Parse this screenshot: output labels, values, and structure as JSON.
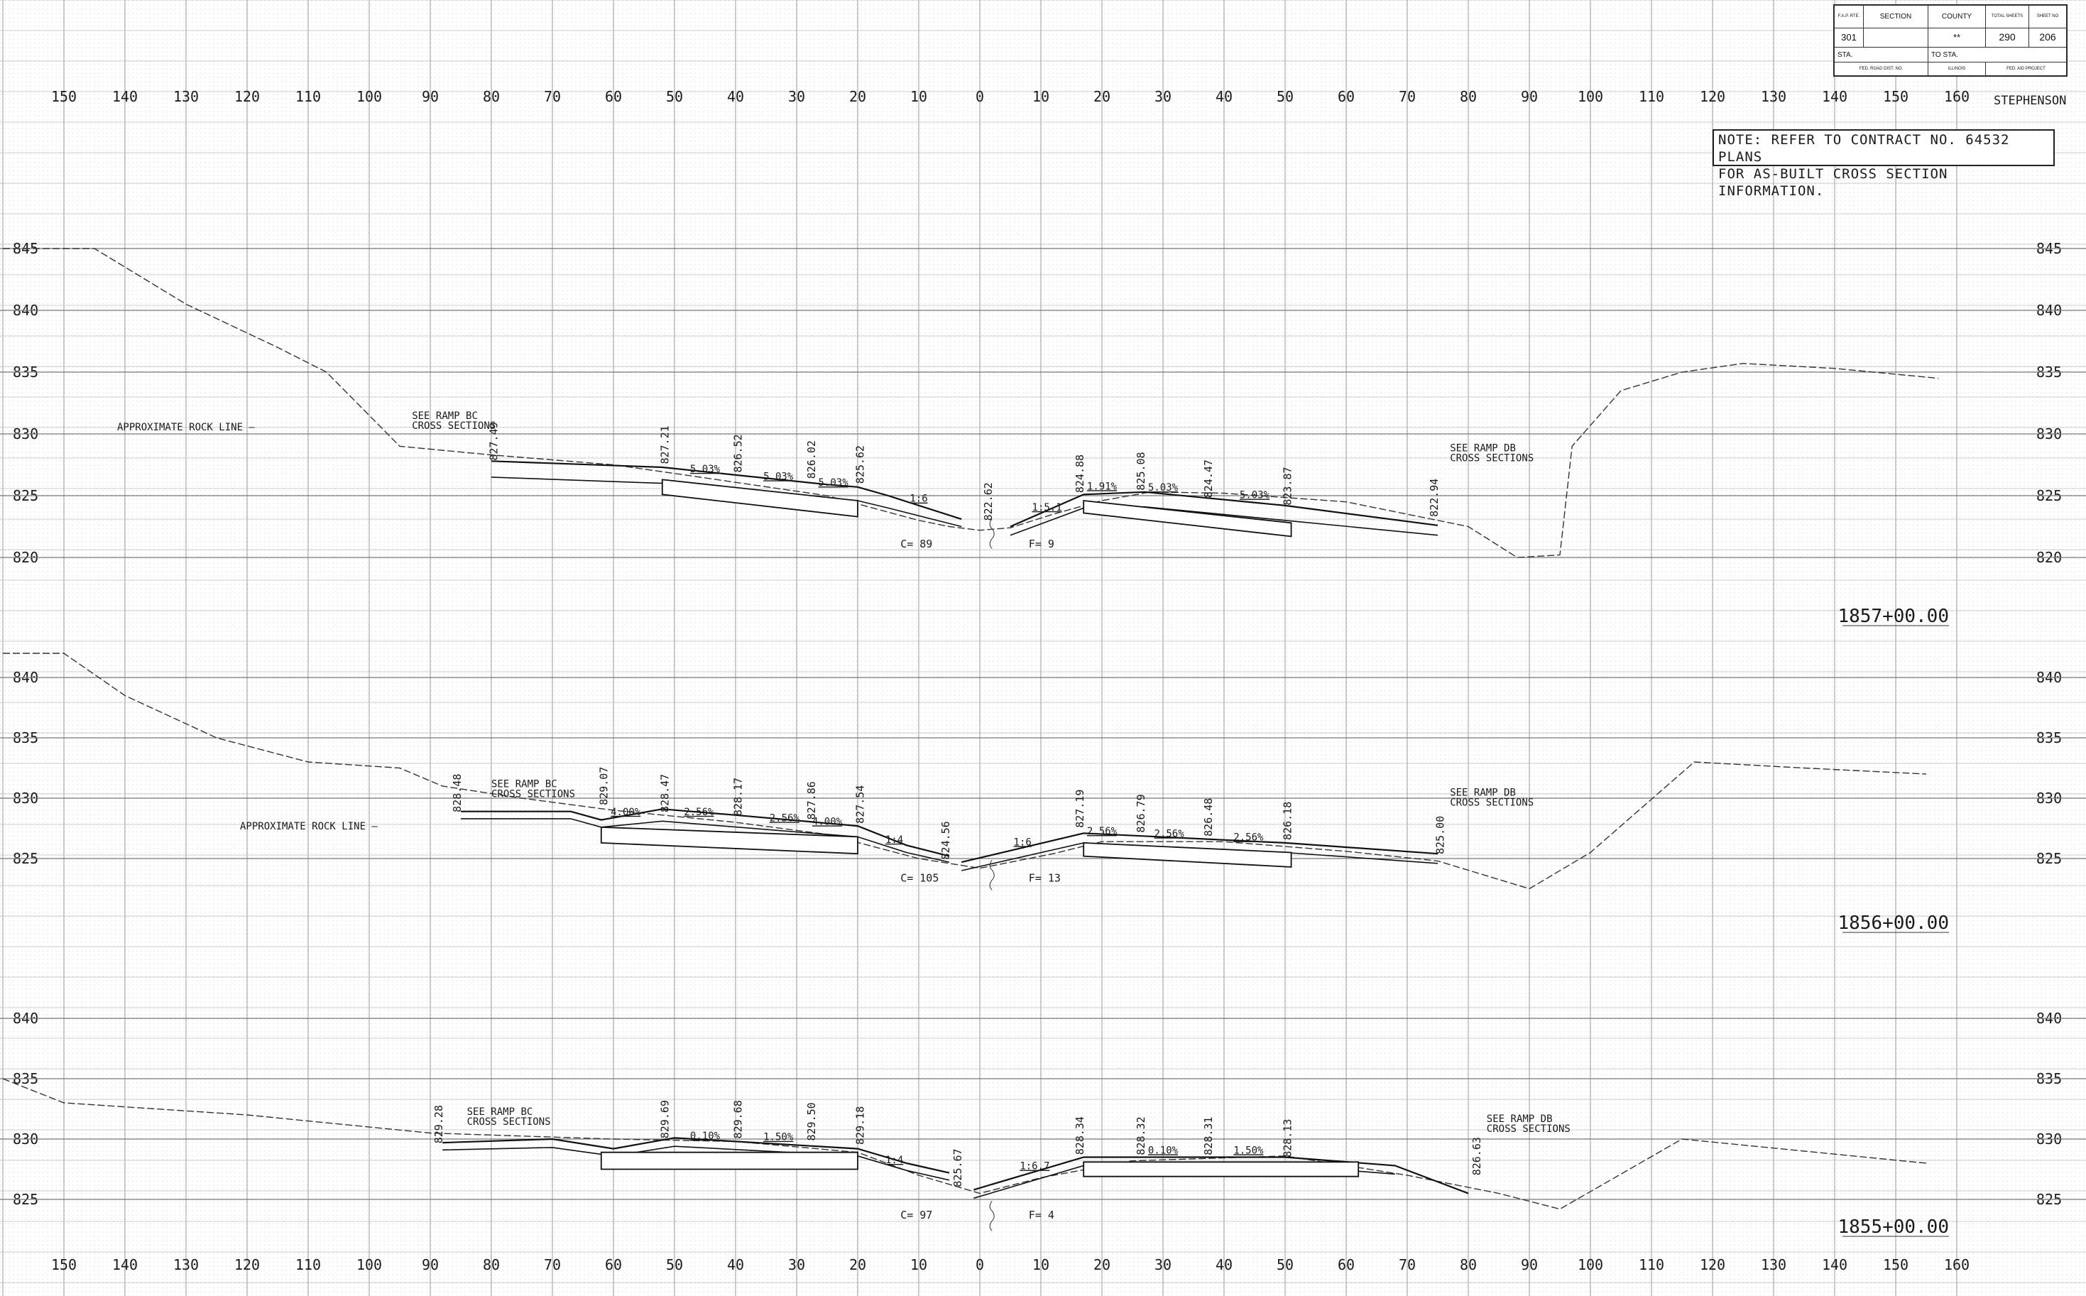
{
  "title_block": {
    "fap_rte_label": "F.A.P. RTE.",
    "section_label": "SECTION",
    "county_label": "COUNTY",
    "total_sheets_label": "TOTAL SHEETS",
    "sheet_no_label": "SHEET NO",
    "route": "301",
    "section": "",
    "county": "**",
    "total_sheets": "290",
    "sheet_no": "206",
    "sta_label": "STA.",
    "to_sta_label": "TO STA.",
    "road_dist_label": "FED. ROAD DIST. NO.",
    "state_label": "ILLINOIS",
    "aid_project_label": "FED. AID PROJECT",
    "county_name": "STEPHENSON"
  },
  "note": {
    "line1": "NOTE:  REFER TO CONTRACT NO. 64532 PLANS",
    "line2": "FOR AS-BUILT CROSS SECTION INFORMATION."
  },
  "offset_labels": [
    "150",
    "140",
    "130",
    "120",
    "110",
    "100",
    "90",
    "80",
    "70",
    "60",
    "50",
    "40",
    "30",
    "20",
    "10",
    "0",
    "10",
    "20",
    "30",
    "40",
    "50",
    "60",
    "70",
    "80",
    "90",
    "100",
    "110",
    "120",
    "130",
    "140",
    "150",
    "160"
  ],
  "panels": [
    {
      "station": "1857+00.00",
      "elevations": [
        "845",
        "840",
        "835",
        "830",
        "825",
        "820"
      ],
      "elev_min": 820,
      "elev_max": 845,
      "rock_label": "APPROXIMATE ROCK LINE",
      "left_ref": [
        "SEE RAMP BC",
        "CROSS SECTIONS"
      ],
      "right_ref": [
        "SEE RAMP DB",
        "CROSS SECTIONS"
      ],
      "cut": "C= 89",
      "fill": "F= 9",
      "ground": [
        [
          -160,
          845
        ],
        [
          -145,
          845
        ],
        [
          -130,
          840.5
        ],
        [
          -115,
          837
        ],
        [
          -107,
          835
        ],
        [
          -105,
          834
        ],
        [
          -103,
          833
        ],
        [
          -95,
          829
        ],
        [
          -80,
          828.3
        ],
        [
          -60,
          827.5
        ],
        [
          -50,
          826.8
        ],
        [
          -25,
          825
        ],
        [
          -10,
          823
        ],
        [
          -5,
          822.5
        ],
        [
          0,
          822.2
        ],
        [
          5,
          822.4
        ],
        [
          12,
          823.5
        ],
        [
          20,
          824.6
        ],
        [
          28,
          825.3
        ],
        [
          40,
          825.2
        ],
        [
          60,
          824.5
        ],
        [
          80,
          822.5
        ],
        [
          88,
          820
        ],
        [
          95,
          820.2
        ],
        [
          97,
          829
        ],
        [
          105,
          833.5
        ],
        [
          115,
          835
        ],
        [
          125,
          835.7
        ],
        [
          140,
          835.3
        ],
        [
          157,
          834.5
        ]
      ],
      "rock": [
        [
          -160,
          845
        ],
        [
          -145,
          845
        ],
        [
          -130,
          840.5
        ],
        [
          -115,
          837
        ],
        [
          -107,
          835
        ],
        [
          -103,
          833
        ],
        [
          -95,
          829
        ],
        [
          -80,
          828.3
        ],
        [
          -60,
          827.5
        ],
        [
          -50,
          826.8
        ]
      ],
      "road_top": [
        [
          -80,
          827.8
        ],
        [
          -52,
          827.3
        ],
        [
          -25,
          825.9
        ],
        [
          -20,
          825.7
        ],
        [
          -15,
          825
        ],
        [
          -3,
          823.1
        ]
      ],
      "road_bottom": [
        [
          -80,
          826.5
        ],
        [
          -52,
          826
        ],
        [
          -20,
          824.6
        ],
        [
          -15,
          824
        ],
        [
          -3,
          822.5
        ]
      ],
      "slab_left": [
        [
          -52,
          826.3
        ],
        [
          -20,
          824.6
        ],
        [
          -20,
          823.3
        ],
        [
          -52,
          825.1
        ]
      ],
      "road_top_r": [
        [
          5,
          822.5
        ],
        [
          17,
          825.1
        ],
        [
          27,
          825.3
        ],
        [
          50,
          824.2
        ],
        [
          75,
          822.6
        ]
      ],
      "road_bottom_r": [
        [
          5,
          821.8
        ],
        [
          17,
          824
        ],
        [
          27,
          824.1
        ],
        [
          50,
          823
        ],
        [
          75,
          821.8
        ]
      ],
      "slab_right": [
        [
          17,
          824.6
        ],
        [
          51,
          822.8
        ],
        [
          51,
          821.7
        ],
        [
          17,
          823.6
        ]
      ],
      "elev_labels": [
        {
          "x": -79,
          "y": 827.49,
          "text": "827.49"
        },
        {
          "x": -51,
          "y": 827.21,
          "text": "827.21"
        },
        {
          "x": -39,
          "y": 826.52,
          "text": "826.52"
        },
        {
          "x": -27,
          "y": 826.02,
          "text": "826.02"
        },
        {
          "x": -19,
          "y": 825.62,
          "text": "825.62"
        },
        {
          "x": 2,
          "y": 822.62,
          "text": "822.62"
        },
        {
          "x": 17,
          "y": 824.88,
          "text": "824.88"
        },
        {
          "x": 27,
          "y": 825.08,
          "text": "825.08"
        },
        {
          "x": 38,
          "y": 824.47,
          "text": "824.47"
        },
        {
          "x": 51,
          "y": 823.87,
          "text": "823.87"
        },
        {
          "x": 75,
          "y": 822.94,
          "text": "822.94"
        }
      ],
      "slope_labels": [
        {
          "x": -45,
          "y": 826.9,
          "text": "5.03%"
        },
        {
          "x": -33,
          "y": 826.3,
          "text": "5.03%"
        },
        {
          "x": -24,
          "y": 825.8,
          "text": "5.03%"
        },
        {
          "x": -10,
          "y": 824.5,
          "text": "1:6"
        },
        {
          "x": 11,
          "y": 823.8,
          "text": "1:5.1"
        },
        {
          "x": 20,
          "y": 825.5,
          "text": "1.91%"
        },
        {
          "x": 30,
          "y": 825.4,
          "text": "5.03%"
        },
        {
          "x": 45,
          "y": 824.8,
          "text": "5.03%"
        }
      ]
    },
    {
      "station": "1856+00.00",
      "elevations": [
        "840",
        "835",
        "830",
        "825"
      ],
      "elev_min": 822,
      "elev_max": 842,
      "rock_label": "APPROXIMATE ROCK LINE",
      "left_ref": [
        "SEE RAMP BC",
        "CROSS SECTIONS"
      ],
      "right_ref": [
        "SEE RAMP DB",
        "CROSS SECTIONS"
      ],
      "cut": "C= 105",
      "fill": "F= 13",
      "ground": [
        [
          -160,
          842
        ],
        [
          -150,
          842
        ],
        [
          -140,
          838.5
        ],
        [
          -125,
          835
        ],
        [
          -110,
          833
        ],
        [
          -95,
          832.5
        ],
        [
          -88,
          831
        ],
        [
          -75,
          830
        ],
        [
          -60,
          829
        ],
        [
          -40,
          828
        ],
        [
          -25,
          827
        ],
        [
          -10,
          825
        ],
        [
          0,
          824.2
        ],
        [
          12,
          825.4
        ],
        [
          20,
          826.4
        ],
        [
          40,
          826.4
        ],
        [
          60,
          825.6
        ],
        [
          75,
          824.8
        ],
        [
          90,
          822.5
        ],
        [
          100,
          825.5
        ],
        [
          117,
          833
        ],
        [
          135,
          832.5
        ],
        [
          155,
          832
        ]
      ],
      "rock": [
        [
          -160,
          842
        ],
        [
          -150,
          842
        ],
        [
          -140,
          838.5
        ],
        [
          -125,
          835
        ],
        [
          -110,
          833
        ],
        [
          -95,
          832.5
        ],
        [
          -88,
          831
        ],
        [
          -75,
          830
        ],
        [
          -60,
          829
        ]
      ],
      "road_top": [
        [
          -85,
          828.9
        ],
        [
          -67,
          828.9
        ],
        [
          -62,
          828.2
        ],
        [
          -52,
          829.1
        ],
        [
          -40,
          828.6
        ],
        [
          -20,
          827.7
        ],
        [
          -12,
          826.1
        ],
        [
          -5,
          825.2
        ]
      ],
      "road_bottom": [
        [
          -85,
          828.3
        ],
        [
          -67,
          828.3
        ],
        [
          -62,
          827.6
        ],
        [
          -52,
          828.1
        ],
        [
          -20,
          826.8
        ],
        [
          -12,
          825.5
        ],
        [
          -5,
          824.7
        ]
      ],
      "slab_left": [
        [
          -62,
          827.6
        ],
        [
          -20,
          826.8
        ],
        [
          -20,
          825.4
        ],
        [
          -62,
          826.3
        ]
      ],
      "road_top_r": [
        [
          -3,
          824.7
        ],
        [
          17,
          827.1
        ],
        [
          50,
          826.3
        ],
        [
          75,
          825.4
        ]
      ],
      "road_bottom_r": [
        [
          -3,
          824
        ],
        [
          17,
          826.3
        ],
        [
          50,
          825.5
        ],
        [
          75,
          824.6
        ]
      ],
      "slab_right": [
        [
          17,
          826.3
        ],
        [
          51,
          825.5
        ],
        [
          51,
          824.3
        ],
        [
          17,
          825.2
        ]
      ],
      "elev_labels": [
        {
          "x": -85,
          "y": 828.48,
          "text": "828.48"
        },
        {
          "x": -61,
          "y": 829.07,
          "text": "829.07"
        },
        {
          "x": -51,
          "y": 828.47,
          "text": "828.47"
        },
        {
          "x": -39,
          "y": 828.17,
          "text": "828.17"
        },
        {
          "x": -27,
          "y": 827.86,
          "text": "827.86"
        },
        {
          "x": -19,
          "y": 827.54,
          "text": "827.54"
        },
        {
          "x": -5,
          "y": 824.56,
          "text": "824.56"
        },
        {
          "x": 17,
          "y": 827.19,
          "text": "827.19"
        },
        {
          "x": 27,
          "y": 826.79,
          "text": "826.79"
        },
        {
          "x": 38,
          "y": 826.48,
          "text": "826.48"
        },
        {
          "x": 51,
          "y": 826.18,
          "text": "826.18"
        },
        {
          "x": 76,
          "y": 825.0,
          "text": "825.00"
        }
      ],
      "slope_labels": [
        {
          "x": -58,
          "y": 828.6,
          "text": "4.00%"
        },
        {
          "x": -46,
          "y": 828.6,
          "text": "2.56%"
        },
        {
          "x": -32,
          "y": 828.1,
          "text": "2.56%"
        },
        {
          "x": -25,
          "y": 827.8,
          "text": "4.00%"
        },
        {
          "x": -14,
          "y": 826.3,
          "text": "1:4"
        },
        {
          "x": 7,
          "y": 826.1,
          "text": "1:6"
        },
        {
          "x": 20,
          "y": 827.0,
          "text": "2.56%"
        },
        {
          "x": 31,
          "y": 826.8,
          "text": "2.56%"
        },
        {
          "x": 44,
          "y": 826.5,
          "text": "2.56%"
        }
      ]
    },
    {
      "station": "1855+00.00",
      "elevations": [
        "840",
        "835",
        "830",
        "825"
      ],
      "elev_min": 822,
      "elev_max": 842,
      "rock_label": "",
      "left_ref": [
        "SEE RAMP BC",
        "CROSS SECTIONS"
      ],
      "right_ref": [
        "SEE RAMP DB",
        "CROSS SECTIONS"
      ],
      "cut": "C= 97",
      "fill": "F= 4",
      "ground": [
        [
          -160,
          835
        ],
        [
          -150,
          833
        ],
        [
          -120,
          832
        ],
        [
          -90,
          830.5
        ],
        [
          -60,
          830
        ],
        [
          -40,
          829.8
        ],
        [
          -20,
          828.9
        ],
        [
          -10,
          827
        ],
        [
          0,
          825.5
        ],
        [
          10,
          826.8
        ],
        [
          25,
          828.2
        ],
        [
          50,
          828.6
        ],
        [
          70,
          827
        ],
        [
          85,
          825.5
        ],
        [
          95,
          824.2
        ],
        [
          115,
          830
        ],
        [
          135,
          829
        ],
        [
          155,
          828
        ]
      ],
      "rock": [],
      "road_top": [
        [
          -88,
          829.7
        ],
        [
          -70,
          830
        ],
        [
          -60,
          829.2
        ],
        [
          -50,
          830.1
        ],
        [
          -40,
          829.8
        ],
        [
          -20,
          829.2
        ],
        [
          -12,
          828
        ],
        [
          -5,
          827.2
        ]
      ],
      "road_bottom": [
        [
          -88,
          829.1
        ],
        [
          -70,
          829.3
        ],
        [
          -60,
          828.6
        ],
        [
          -50,
          829.4
        ],
        [
          -20,
          828.6
        ],
        [
          -12,
          827.4
        ],
        [
          -5,
          826.6
        ]
      ],
      "slab_left": [
        [
          -62,
          828.9
        ],
        [
          -20,
          828.9
        ],
        [
          -20,
          827.5
        ],
        [
          -62,
          827.5
        ]
      ],
      "road_top_r": [
        [
          -1,
          825.8
        ],
        [
          17,
          828.5
        ],
        [
          50,
          828.5
        ],
        [
          68,
          827.8
        ],
        [
          80,
          825.5
        ]
      ],
      "road_bottom_r": [
        [
          -1,
          825.1
        ],
        [
          17,
          827.8
        ],
        [
          50,
          827.8
        ],
        [
          68,
          827.1
        ]
      ],
      "slab_right": [
        [
          17,
          828.1
        ],
        [
          62,
          828.1
        ],
        [
          62,
          826.9
        ],
        [
          17,
          826.9
        ]
      ],
      "elev_labels": [
        {
          "x": -88,
          "y": 829.28,
          "text": "829.28"
        },
        {
          "x": -51,
          "y": 829.69,
          "text": "829.69"
        },
        {
          "x": -39,
          "y": 829.68,
          "text": "829.68"
        },
        {
          "x": -27,
          "y": 829.5,
          "text": "829.50"
        },
        {
          "x": -19,
          "y": 829.18,
          "text": "829.18"
        },
        {
          "x": -3,
          "y": 825.67,
          "text": "825.67"
        },
        {
          "x": 17,
          "y": 828.34,
          "text": "828.34"
        },
        {
          "x": 27,
          "y": 828.32,
          "text": "828.32"
        },
        {
          "x": 38,
          "y": 828.31,
          "text": "828.31"
        },
        {
          "x": 51,
          "y": 828.13,
          "text": "828.13"
        },
        {
          "x": 82,
          "y": 826.63,
          "text": "826.63"
        }
      ],
      "slope_labels": [
        {
          "x": -45,
          "y": 830.0,
          "text": "0.10%"
        },
        {
          "x": -33,
          "y": 829.9,
          "text": "1.50%"
        },
        {
          "x": -14,
          "y": 828.0,
          "text": "1:4"
        },
        {
          "x": 9,
          "y": 827.5,
          "text": "1:6.7"
        },
        {
          "x": 30,
          "y": 828.8,
          "text": "0.10%"
        },
        {
          "x": 44,
          "y": 828.8,
          "text": "1.50%"
        }
      ]
    }
  ]
}
